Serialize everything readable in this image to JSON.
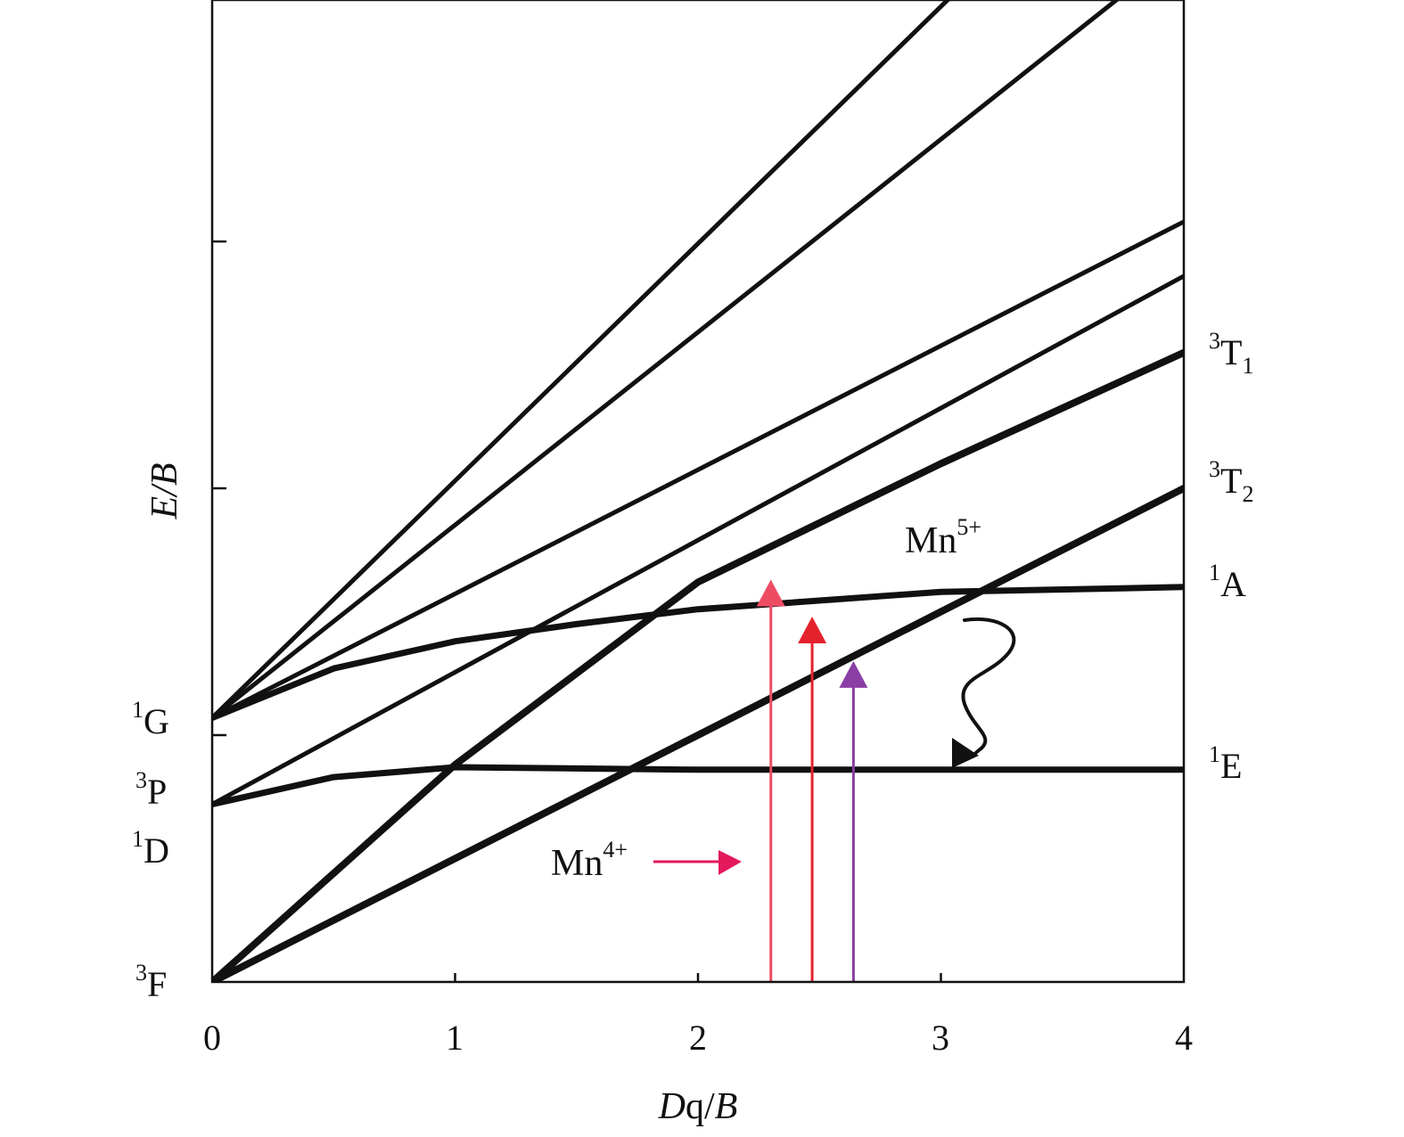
{
  "chart_data": {
    "type": "line",
    "title": "",
    "xlabel": {
      "italic": "D",
      "rest": "q/",
      "italic2": "B"
    },
    "ylabel": "E/B",
    "xlim": [
      0,
      4
    ],
    "ylim": [
      0,
      4
    ],
    "x_ticks": [
      "0",
      "1",
      "2",
      "3",
      "4"
    ],
    "y_ticks": [
      1,
      2,
      3
    ],
    "left_terms": [
      {
        "sup": "1",
        "base": "G",
        "y": 1.0
      },
      {
        "sup": "3",
        "base": "P",
        "y": 0.72
      },
      {
        "sup": "1",
        "base": "D",
        "y": 0.55
      },
      {
        "sup": "3",
        "base": "F",
        "y": 0.0
      }
    ],
    "right_terms": [
      {
        "sup": "3",
        "base": "T",
        "sub": "1",
        "y": 2.53
      },
      {
        "sup": "3",
        "base": "T",
        "sub": "2",
        "y": 2.0
      },
      {
        "sup": "1",
        "base": "A",
        "y": 1.6
      },
      {
        "sup": "1",
        "base": "E",
        "y": 0.88
      }
    ],
    "series": [
      {
        "name": "1G-high-a",
        "width": 5,
        "x": [
          0,
          3.05
        ],
        "y": [
          1.07,
          4.0
        ]
      },
      {
        "name": "1G-high-b",
        "width": 5,
        "x": [
          0,
          3.75
        ],
        "y": [
          1.07,
          4.0
        ]
      },
      {
        "name": "1G-mid",
        "width": 5,
        "x": [
          0,
          4
        ],
        "y": [
          1.07,
          3.08
        ]
      },
      {
        "name": "3P-high",
        "width": 5,
        "x": [
          0,
          4
        ],
        "y": [
          0.72,
          2.86
        ]
      },
      {
        "name": "3T1",
        "width": 8,
        "x": [
          0,
          1,
          2,
          3,
          4
        ],
        "y": [
          0.0,
          0.88,
          1.62,
          2.1,
          2.55
        ]
      },
      {
        "name": "3T2",
        "width": 8,
        "x": [
          0,
          1,
          2,
          3,
          4
        ],
        "y": [
          0.0,
          0.5,
          1.0,
          1.5,
          2.0
        ]
      },
      {
        "name": "1A",
        "width": 7,
        "x": [
          0,
          0.5,
          1,
          1.5,
          2,
          3,
          4
        ],
        "y": [
          1.07,
          1.27,
          1.38,
          1.45,
          1.51,
          1.58,
          1.6
        ]
      },
      {
        "name": "1E",
        "width": 7,
        "x": [
          0,
          0.5,
          1,
          2,
          3,
          4
        ],
        "y": [
          0.72,
          0.83,
          0.87,
          0.86,
          0.86,
          0.86
        ]
      }
    ],
    "transition_arrows": [
      {
        "name": "red-arrow-1",
        "x": 2.3,
        "y_from": 0.0,
        "y_to": 1.63,
        "color": "#ee4c63"
      },
      {
        "name": "red-arrow-2",
        "x": 2.47,
        "y_from": 0.0,
        "y_to": 1.48,
        "color": "#e3222c"
      },
      {
        "name": "purple-arrow",
        "x": 2.64,
        "y_from": 0.0,
        "y_to": 1.3,
        "color": "#8b3ea4"
      }
    ],
    "annotations": [
      {
        "name": "mn5-label",
        "base": "Mn",
        "sup": "5+",
        "x": 2.85,
        "y": 1.79
      },
      {
        "name": "mn4-label",
        "base": "Mn",
        "sup": "4+",
        "x": 1.4,
        "y": 0.44
      }
    ],
    "mn4_arrow": {
      "x_from": 1.82,
      "x_to": 2.18,
      "y": 0.49,
      "color": "#e3195c"
    },
    "relaxation_arrow": {
      "from": [
        3.1,
        1.48
      ],
      "to": [
        3.05,
        0.88
      ],
      "color": "#111111"
    }
  }
}
